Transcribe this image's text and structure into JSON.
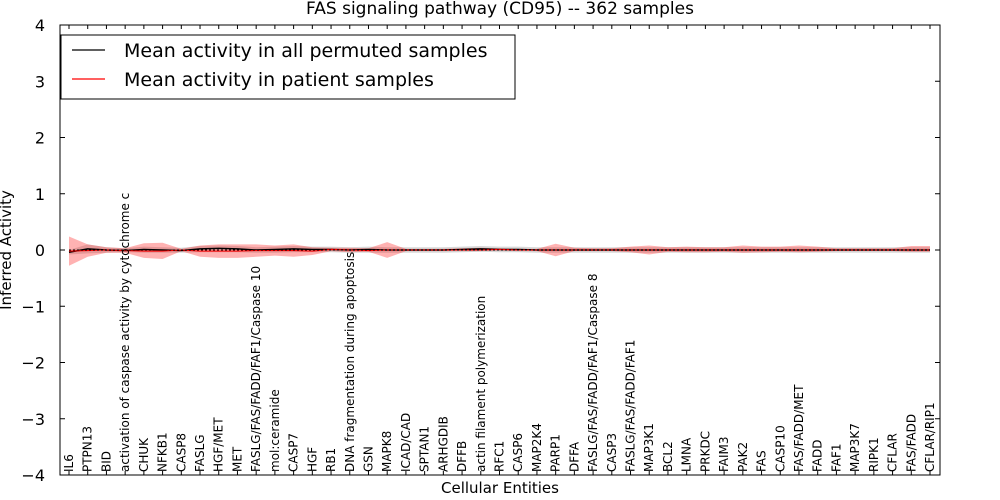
{
  "chart_data": {
    "type": "line",
    "title": "FAS signaling pathway (CD95) -- 362 samples",
    "xlabel": "Cellular Entities",
    "ylabel": "Inferred Activity",
    "ylim": [
      -4,
      4
    ],
    "yticks": [
      4,
      3,
      2,
      1,
      0,
      -1,
      -2,
      -3,
      -4
    ],
    "ytick_labels": [
      "4",
      "3",
      "2",
      "1",
      "0",
      "−1",
      "−2",
      "−3",
      "−4"
    ],
    "legend": {
      "placement": "top-left",
      "entries": [
        {
          "label": "Mean activity in all permuted samples",
          "color": "#000000"
        },
        {
          "label": "Mean activity in patient samples",
          "color": "#ff0000"
        }
      ]
    },
    "categories": [
      "IL6",
      "PTPN13",
      "BID",
      "activation of caspase activity by cytochrome c",
      "CHUK",
      "NFKB1",
      "CASP8",
      "FASLG",
      "HGF/MET",
      "MET",
      "FASLG/FAS/FADD/FAF1/Caspase 10",
      "mol:ceramide",
      "CASP7",
      "HGF",
      "RB1",
      "DNA fragmentation during apoptosis",
      "GSN",
      "MAPK8",
      "ICAD/CAD",
      "SPTAN1",
      "ARHGDIB",
      "DFFB",
      "actin filament polymerization",
      "RFC1",
      "CASP6",
      "MAP2K4",
      "PARP1",
      "DFFA",
      "FASLG/FAS/FADD/FAF1/Caspase 8",
      "CASP3",
      "FASLG/FAS/FADD/FAF1",
      "MAP3K1",
      "BCL2",
      "LMNA",
      "PRKDC",
      "FAIM3",
      "PAK2",
      "FAS",
      "CASP10",
      "FAS/FADD/MET",
      "FADD",
      "FAF1",
      "MAP3K7",
      "RIPK1",
      "CFLAR",
      "FAS/FADD",
      "CFLAR/RIP1"
    ],
    "series": [
      {
        "name": "Mean activity in all permuted samples",
        "color": "#000000",
        "values": [
          -0.04,
          0.02,
          0.0,
          -0.01,
          0.01,
          0.0,
          -0.01,
          0.02,
          0.03,
          0.02,
          0.0,
          0.01,
          0.02,
          0.01,
          0.01,
          0.0,
          0.01,
          0.0,
          0.0,
          0.0,
          0.0,
          0.01,
          0.02,
          0.01,
          0.01,
          0.0,
          0.0,
          0.0,
          0.0,
          0.0,
          0.0,
          0.0,
          0.0,
          0.0,
          0.0,
          0.0,
          0.0,
          0.0,
          0.0,
          0.0,
          0.0,
          0.0,
          0.0,
          0.0,
          0.0,
          0.0,
          0.0
        ]
      },
      {
        "name": "Mean activity in patient samples",
        "color": "#ff0000",
        "values": [
          -0.02,
          -0.01,
          0.0,
          -0.01,
          -0.02,
          -0.02,
          0.0,
          -0.02,
          -0.02,
          -0.02,
          -0.01,
          -0.01,
          -0.01,
          -0.02,
          0.01,
          0.0,
          -0.01,
          0.0,
          0.0,
          0.0,
          0.0,
          0.0,
          0.0,
          0.01,
          0.0,
          0.0,
          0.0,
          0.0,
          0.0,
          0.0,
          0.0,
          0.0,
          0.0,
          0.0,
          0.0,
          0.0,
          0.0,
          0.0,
          0.0,
          0.0,
          0.0,
          0.0,
          0.0,
          0.0,
          0.0,
          0.0,
          0.0
        ]
      }
    ],
    "bands": [
      {
        "name": "permuted-std",
        "color": "#c8c8c8",
        "lower": [
          -0.08,
          -0.06,
          -0.05,
          -0.04,
          -0.05,
          -0.05,
          -0.05,
          -0.04,
          -0.04,
          -0.04,
          -0.05,
          -0.05,
          -0.04,
          -0.04,
          -0.04,
          -0.05,
          -0.05,
          -0.05,
          -0.05,
          -0.05,
          -0.05,
          -0.04,
          -0.03,
          -0.04,
          -0.04,
          -0.05,
          -0.05,
          -0.05,
          -0.05,
          -0.05,
          -0.05,
          -0.05,
          -0.05,
          -0.05,
          -0.05,
          -0.05,
          -0.05,
          -0.05,
          -0.05,
          -0.05,
          -0.05,
          -0.05,
          -0.05,
          -0.05,
          -0.05,
          -0.05,
          -0.05
        ],
        "upper": [
          0.0,
          0.1,
          0.05,
          0.03,
          0.06,
          0.05,
          0.04,
          0.07,
          0.08,
          0.07,
          0.05,
          0.06,
          0.07,
          0.06,
          0.06,
          0.05,
          0.06,
          0.05,
          0.05,
          0.05,
          0.05,
          0.06,
          0.07,
          0.06,
          0.06,
          0.05,
          0.05,
          0.05,
          0.05,
          0.05,
          0.05,
          0.05,
          0.05,
          0.05,
          0.05,
          0.05,
          0.05,
          0.05,
          0.05,
          0.05,
          0.05,
          0.05,
          0.05,
          0.05,
          0.05,
          0.05,
          0.05
        ]
      },
      {
        "name": "patient-std",
        "color": "#ff0000",
        "lower": [
          -0.28,
          -0.12,
          -0.05,
          -0.05,
          -0.14,
          -0.16,
          -0.02,
          -0.12,
          -0.14,
          -0.14,
          -0.12,
          -0.1,
          -0.12,
          -0.09,
          -0.02,
          -0.04,
          -0.03,
          -0.14,
          -0.02,
          -0.02,
          -0.02,
          -0.02,
          -0.02,
          -0.01,
          -0.02,
          -0.02,
          -0.11,
          -0.02,
          -0.02,
          -0.02,
          -0.04,
          -0.08,
          -0.03,
          -0.04,
          -0.04,
          -0.03,
          -0.05,
          -0.04,
          -0.03,
          -0.04,
          -0.03,
          -0.02,
          -0.02,
          -0.02,
          -0.02,
          -0.03,
          -0.03
        ],
        "upper": [
          0.24,
          0.1,
          0.05,
          0.03,
          0.12,
          0.13,
          0.02,
          0.08,
          0.1,
          0.1,
          0.1,
          0.08,
          0.1,
          0.05,
          0.04,
          0.04,
          0.03,
          0.14,
          0.02,
          0.02,
          0.02,
          0.03,
          0.04,
          0.03,
          0.02,
          0.02,
          0.11,
          0.04,
          0.03,
          0.03,
          0.06,
          0.08,
          0.05,
          0.06,
          0.05,
          0.05,
          0.08,
          0.06,
          0.06,
          0.08,
          0.06,
          0.03,
          0.03,
          0.03,
          0.03,
          0.07,
          0.07
        ]
      }
    ]
  }
}
